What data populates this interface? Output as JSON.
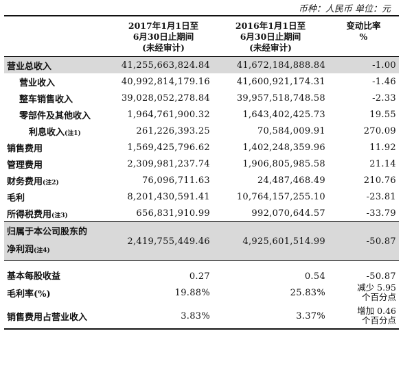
{
  "currency_note": "币种：人民币  单位：元",
  "headers": {
    "col1": [
      "2017年1月1日至",
      "6月30日止期间",
      "(未经审计)"
    ],
    "col2": [
      "2016年1月1日至",
      "6月30日止期间",
      "(未经审计)"
    ],
    "col3": [
      "变动比率",
      "%"
    ]
  },
  "rows": [
    {
      "label": "营业总收入",
      "note": "",
      "v1": "41,255,663,824.84",
      "v2": "41,672,184,888.84",
      "v3": "-1.00"
    },
    {
      "label": "营业收入",
      "note": "",
      "v1": "40,992,814,179.16",
      "v2": "41,600,921,174.31",
      "v3": "-1.46"
    },
    {
      "label": "整车销售收入",
      "note": "",
      "v1": "39,028,052,278.84",
      "v2": "39,957,518,748.58",
      "v3": "-2.33"
    },
    {
      "label": "零部件及其他收入",
      "note": "",
      "v1": "1,964,761,900.32",
      "v2": "1,643,402,425.73",
      "v3": "19.55"
    },
    {
      "label": "利息收入",
      "note": "(注1)",
      "v1": "261,226,393.25",
      "v2": "70,584,009.91",
      "v3": "270.09"
    },
    {
      "label": "销售费用",
      "note": "",
      "v1": "1,569,425,796.62",
      "v2": "1,402,248,359.96",
      "v3": "11.92"
    },
    {
      "label": "管理费用",
      "note": "",
      "v1": "2,309,981,237.74",
      "v2": "1,906,805,985.58",
      "v3": "21.14"
    },
    {
      "label": "财务费用",
      "note": "(注2)",
      "v1": "76,096,711.63",
      "v2": "24,487,468.49",
      "v3": "210.76"
    },
    {
      "label": "毛利",
      "note": "",
      "v1": "8,201,430,591.41",
      "v2": "10,764,157,255.10",
      "v3": "-23.81"
    },
    {
      "label": "所得税费用",
      "note": "(注3)",
      "v1": "656,831,910.99",
      "v2": "992,070,644.57",
      "v3": "-33.79"
    }
  ],
  "net_profit": {
    "label1": "归属于本公司股东的",
    "label2": "净利润",
    "note": "(注4)",
    "v1": "2,419,755,449.46",
    "v2": "4,925,601,514.99",
    "v3": "-50.87"
  },
  "bottom_rows": [
    {
      "label": "基本每股收益",
      "v1": "0.27",
      "v2": "0.54",
      "v3a": "-50.87",
      "v3b": ""
    },
    {
      "label": "毛利率(%)",
      "v1": "19.88%",
      "v2": "25.83%",
      "v3a": "减少 5.95",
      "v3b": "个百分点"
    },
    {
      "label": "销售费用占营业收入",
      "v1": "3.83%",
      "v2": "3.37%",
      "v3a": "增加 0.46",
      "v3b": "个百分点"
    }
  ]
}
